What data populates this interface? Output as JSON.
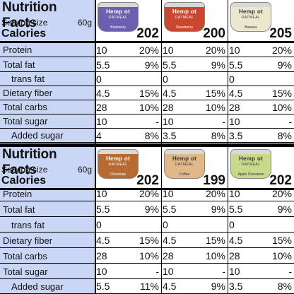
{
  "panels": [
    {
      "title": "Nutrition Facts",
      "serving_label": "Serving size",
      "serving_value": "60g",
      "calories_label": "Calories",
      "rows": [
        {
          "label": "Protein"
        },
        {
          "label": "Total fat"
        },
        {
          "label": "trans fat"
        },
        {
          "label": "Dietary fiber"
        },
        {
          "label": "Total carbs"
        },
        {
          "label": "Total sugar"
        },
        {
          "label": "Added sugar"
        }
      ],
      "products": [
        {
          "brand": "Hemp ot",
          "sub": "OATMEAL",
          "flavor": "Blueberry",
          "color": "#6a5fb0",
          "calories": "202",
          "values": [
            [
              "10",
              "20%"
            ],
            [
              "5.5",
              "9%"
            ],
            [
              "0",
              ""
            ],
            [
              "4.5",
              "15%"
            ],
            [
              "28",
              "10%"
            ],
            [
              "10",
              "-"
            ],
            [
              "4",
              "8%"
            ]
          ]
        },
        {
          "brand": "Hemp ot",
          "sub": "OATMEAL",
          "flavor": "Strawberry",
          "color": "#c8472f",
          "calories": "200",
          "values": [
            [
              "10",
              "20%"
            ],
            [
              "5.5",
              "9%"
            ],
            [
              "0",
              ""
            ],
            [
              "4.5",
              "15%"
            ],
            [
              "28",
              "10%"
            ],
            [
              "10",
              "-"
            ],
            [
              "3.5",
              "8%"
            ]
          ]
        },
        {
          "brand": "Hemp ot",
          "sub": "OATMEAL",
          "flavor": "Banana",
          "color": "#ece8cf",
          "calories": "205",
          "values": [
            [
              "10",
              "20%"
            ],
            [
              "5.5",
              "9%"
            ],
            [
              "0",
              ""
            ],
            [
              "4.5",
              "15%"
            ],
            [
              "28",
              "10%"
            ],
            [
              "10",
              "-"
            ],
            [
              "3.5",
              "8%"
            ]
          ]
        }
      ]
    },
    {
      "title": "Nutrition Facts",
      "serving_label": "Serving size",
      "serving_value": "60g",
      "calories_label": "Calories",
      "rows": [
        {
          "label": "Protein"
        },
        {
          "label": "Total fat"
        },
        {
          "label": "trans fat"
        },
        {
          "label": "Dietary fiber"
        },
        {
          "label": "Total carbs"
        },
        {
          "label": "Total sugar"
        },
        {
          "label": "Added sugar"
        }
      ],
      "products": [
        {
          "brand": "Hemp ot",
          "sub": "OATMEAL",
          "flavor": "Chocolate",
          "color": "#b86a33",
          "calories": "202",
          "values": [
            [
              "10",
              "20%"
            ],
            [
              "5.5",
              "9%"
            ],
            [
              "0",
              ""
            ],
            [
              "4.5",
              "15%"
            ],
            [
              "28",
              "10%"
            ],
            [
              "10",
              "-"
            ],
            [
              "5.5",
              "11%"
            ]
          ]
        },
        {
          "brand": "Hemp ot",
          "sub": "OATMEAL",
          "flavor": "Coffee",
          "color": "#e0b889",
          "calories": "199",
          "values": [
            [
              "10",
              "20%"
            ],
            [
              "5.5",
              "9%"
            ],
            [
              "0",
              ""
            ],
            [
              "4.5",
              "15%"
            ],
            [
              "28",
              "10%"
            ],
            [
              "10",
              "-"
            ],
            [
              "4.5",
              "9%"
            ]
          ]
        },
        {
          "brand": "Hemp ot",
          "sub": "OATMEAL",
          "flavor": "Apple Cinnamon",
          "color": "#c9d98a",
          "calories": "202",
          "values": [
            [
              "10",
              "20%"
            ],
            [
              "5.5",
              "9%"
            ],
            [
              "0",
              ""
            ],
            [
              "4.5",
              "15%"
            ],
            [
              "28",
              "10%"
            ],
            [
              "10",
              "-"
            ],
            [
              "3.5",
              "8%"
            ]
          ]
        }
      ]
    }
  ]
}
